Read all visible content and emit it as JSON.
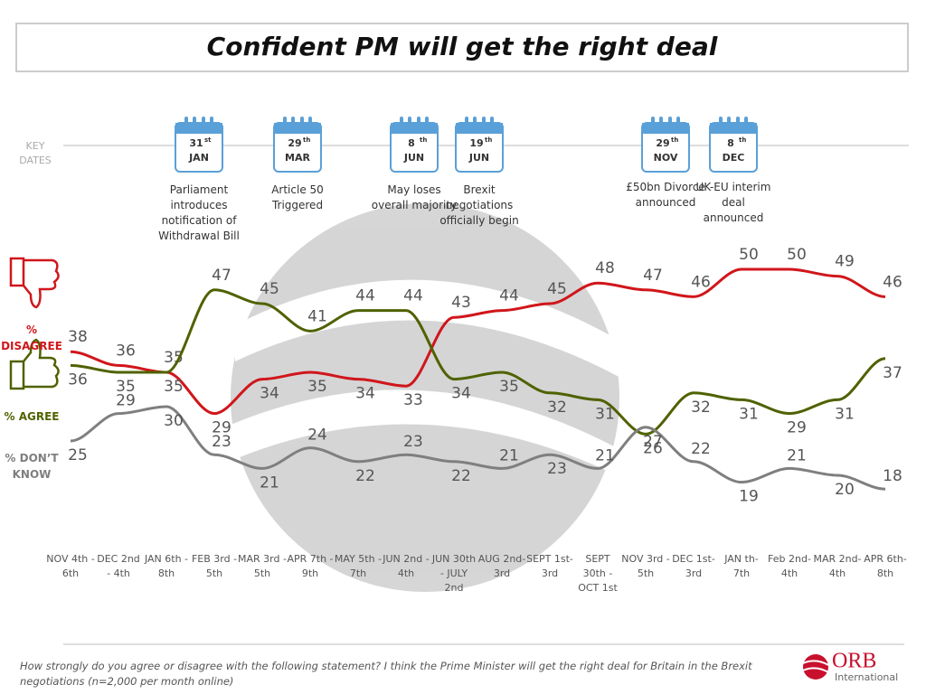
{
  "chart_data": {
    "type": "line",
    "title": "Confident PM will get the right deal",
    "key_dates_label": "KEY DATES",
    "key_dates": [
      {
        "day": "31",
        "suffix": "st",
        "month": "JAN",
        "text": "Parliament introduces notification of Withdrawal Bill"
      },
      {
        "day": "29",
        "suffix": "th",
        "month": "MAR",
        "text": "Article 50 Triggered"
      },
      {
        "day": "8",
        "suffix": "th",
        "month": "JUN",
        "text": "May loses overall majority"
      },
      {
        "day": "19",
        "suffix": "th",
        "month": "JUN",
        "text": "Brexit negotiations officially begin"
      },
      {
        "day": "29",
        "suffix": "th",
        "month": "NOV",
        "text": "£50bn Divorce announced"
      },
      {
        "day": "8",
        "suffix": "th",
        "month": "DEC",
        "text": "UK-EU interim deal announced"
      }
    ],
    "categories": [
      "NOV 4th - 6th",
      "DEC 2nd - 4th",
      "JAN 6th - 8th",
      "FEB 3rd - 5th",
      "MAR 3rd - 5th",
      "APR 7th - 9th",
      "MAY 5th - 7th",
      "JUN 2nd - 4th",
      "JUN 30th - JULY 2nd",
      "AUG 2nd- 3rd",
      "SEPT 1st- 3rd",
      "SEPT 30th - OCT 1st",
      "NOV 3rd - 5th",
      "DEC 1st- 3rd",
      "JAN th- 7th",
      "Feb 2nd- 4th",
      "MAR 2nd- 4th",
      "APR 6th- 8th"
    ],
    "series": [
      {
        "name": "% DISAGREE",
        "color": "#d0161b",
        "values": [
          38,
          36,
          35,
          29,
          34,
          35,
          34,
          33,
          43,
          44,
          45,
          48,
          47,
          46,
          50,
          50,
          49,
          46
        ]
      },
      {
        "name": "% AGREE",
        "color": "#4f6200",
        "values": [
          36,
          35,
          35,
          47,
          45,
          41,
          44,
          44,
          34,
          35,
          32,
          31,
          26,
          32,
          31,
          29,
          31,
          37
        ]
      },
      {
        "name": "% DON’T KNOW",
        "color": "#7f7f7f",
        "values": [
          25,
          29,
          30,
          23,
          21,
          24,
          22,
          23,
          22,
          21,
          23,
          21,
          27,
          22,
          19,
          21,
          20,
          18
        ]
      }
    ],
    "footnote": "How strongly do you agree or disagree with the following statement?  I think the Prime Minister will get the right deal for Britain in the Brexit negotiations (n=2,000 per month online)",
    "logo": "ORB",
    "logo_subtitle": "International"
  }
}
